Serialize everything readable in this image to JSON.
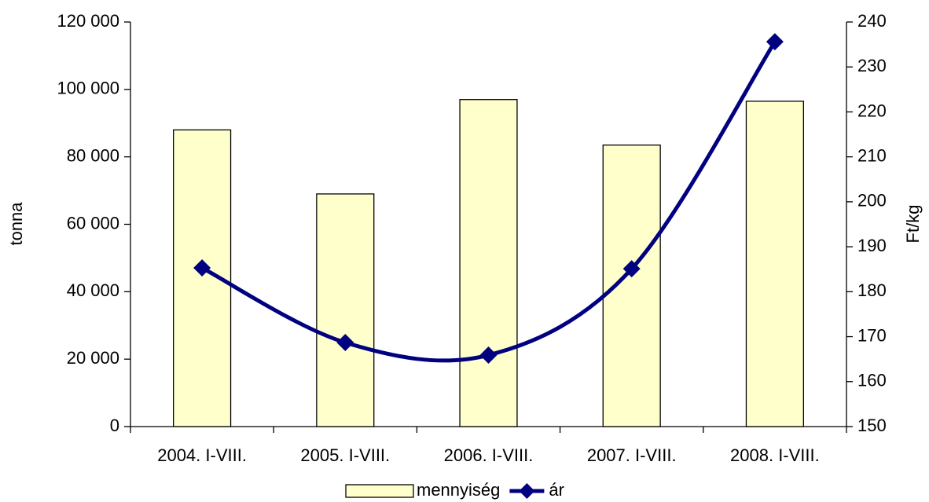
{
  "chart_data": {
    "type": "bar",
    "categories": [
      "2004. I-VIII.",
      "2005. I-VIII.",
      "2006. I-VIII.",
      "2007. I-VIII.",
      "2008. I-VIII."
    ],
    "series": [
      {
        "name": "mennyiség",
        "type": "bar",
        "color": "#ffffcc",
        "values": [
          88000,
          69000,
          97000,
          83500,
          96500
        ]
      },
      {
        "name": "ár",
        "type": "line",
        "axis": "y2",
        "color": "#000080",
        "values": [
          185.3,
          168.7,
          165.9,
          185.1,
          235.6
        ]
      }
    ],
    "ylabel": "tonna",
    "y2label": "Ft/kg",
    "ylim": [
      0,
      120000
    ],
    "yticks": [
      0,
      {
        "value": 20000,
        "label": "20 000"
      },
      {
        "value": 40000,
        "label": "40 000"
      },
      {
        "value": 60000,
        "label": "60 000"
      },
      {
        "value": 80000,
        "label": "80 000"
      },
      {
        "value": 100000,
        "label": "100 000"
      },
      {
        "value": 120000,
        "label": "120 000"
      }
    ],
    "y2lim": [
      150,
      240
    ],
    "y2ticks": [
      150,
      160,
      170,
      180,
      190,
      200,
      210,
      220,
      230,
      240
    ],
    "legend": "bottom"
  }
}
